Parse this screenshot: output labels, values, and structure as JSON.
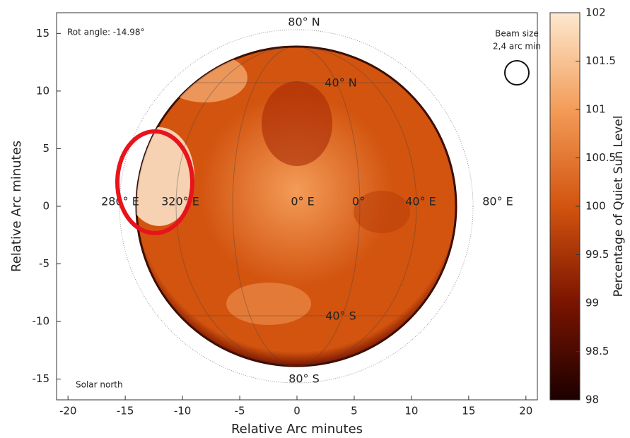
{
  "chart_data": {
    "type": "image",
    "xlabel": "Relative Arc minutes",
    "ylabel": "Relative Arc minutes",
    "xlim": [
      -21,
      21
    ],
    "xticks": [
      -20,
      -15,
      -10,
      -5,
      0,
      5,
      10,
      15,
      20
    ],
    "ylim": [
      -16.8,
      16.8
    ],
    "yticks": [
      -15,
      -10,
      -5,
      0,
      5,
      10,
      15
    ],
    "colorbar": {
      "label": "Percentage of Quiet Sun Level",
      "lim": [
        98,
        102
      ],
      "ticks": [
        98,
        98.5,
        99,
        99.5,
        100,
        100.5,
        101,
        101.5,
        102
      ],
      "colormap": [
        "#1c0000",
        "#7a1400",
        "#d2540f",
        "#f39c58",
        "#fde8cf"
      ]
    },
    "annotations": [
      "Rot angle: -14.98°",
      "Beam size",
      "2,4 arc min",
      "Solar north",
      "80° N",
      "40° N",
      "280° E",
      "320° E",
      "0° E",
      "0°",
      "40° E",
      "80° E",
      "40° S",
      "80° S"
    ],
    "highlight_color": "#e8141c"
  }
}
